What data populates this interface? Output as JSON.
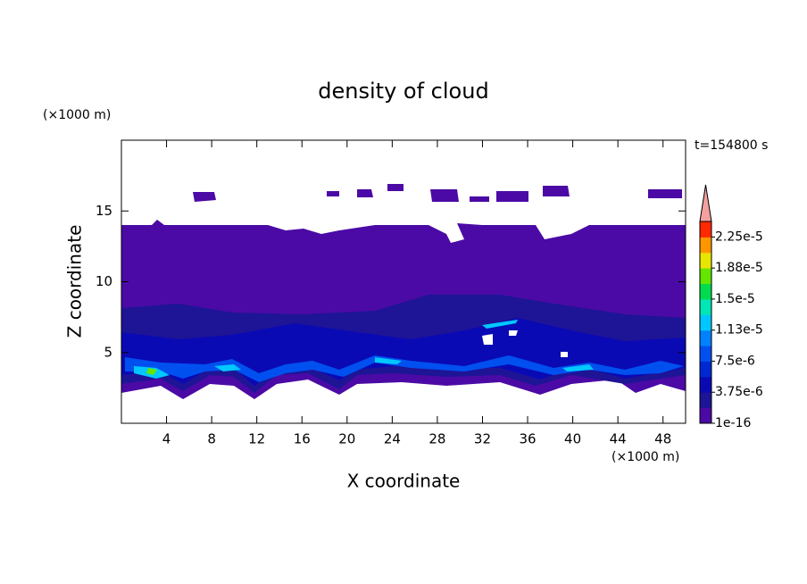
{
  "chart_data": {
    "type": "contour",
    "title": "density of cloud",
    "xlabel": "X coordinate",
    "ylabel": "Z coordinate",
    "x_unit": "(×1000 m)",
    "y_unit": "(×1000 m)",
    "time_label": "t=154800 s",
    "xlim": [
      0,
      50
    ],
    "ylim": [
      0,
      20
    ],
    "xticks": [
      4,
      8,
      12,
      16,
      20,
      24,
      28,
      32,
      36,
      40,
      44,
      48
    ],
    "yticks": [
      5,
      10,
      15
    ],
    "colorbar": {
      "clim": [
        1e-16,
        2.4375e-05
      ],
      "ticks": [
        {
          "value": 1e-16,
          "label": "1e-16"
        },
        {
          "value": 3.75e-06,
          "label": "3.75e-6"
        },
        {
          "value": 7.5e-06,
          "label": "7.5e-6"
        },
        {
          "value": 1.125e-05,
          "label": "1.13e-5"
        },
        {
          "value": 1.5e-05,
          "label": "1.5e-5"
        },
        {
          "value": 1.875e-05,
          "label": "1.88e-5"
        },
        {
          "value": 2.25e-05,
          "label": "2.25e-5"
        }
      ],
      "colors": [
        "#4b0aa5",
        "#1e1496",
        "#0a0ab4",
        "#0028d2",
        "#0050f0",
        "#0082ff",
        "#00c8ff",
        "#00e6b4",
        "#00dc50",
        "#64e600",
        "#e6e600",
        "#ff9600",
        "#ff2800"
      ],
      "extend_color": "#f4a0a0"
    }
  }
}
